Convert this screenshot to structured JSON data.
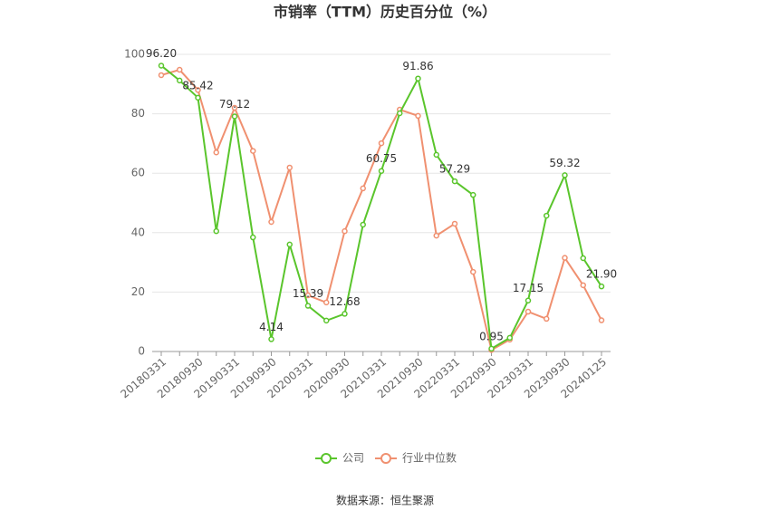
{
  "chart_data": {
    "type": "line",
    "title": "市销率（TTM）历史百分位（%）",
    "source": "数据来源：恒生聚源",
    "categories": [
      "20180331",
      null,
      "20180930",
      null,
      "20190331",
      null,
      "20190930",
      null,
      "20200331",
      null,
      "20200930",
      null,
      "20210331",
      null,
      "20210930",
      null,
      "20220331",
      null,
      "20220930",
      null,
      "20230331",
      null,
      "20230930",
      null,
      "20240125"
    ],
    "series": [
      {
        "name": "公司",
        "color": "#5ac52c",
        "values": [
          96.2,
          91.2,
          85.42,
          40.5,
          79.12,
          38.4,
          4.14,
          36,
          15.39,
          10.4,
          12.68,
          42.7,
          60.75,
          80.2,
          91.86,
          66.2,
          57.29,
          52.7,
          0.95,
          4.6,
          17.15,
          45.7,
          59.32,
          31.4,
          21.9
        ],
        "value_labels": [
          "96.20",
          null,
          "85.42",
          null,
          "79.12",
          null,
          "4.14",
          null,
          "15.39",
          null,
          "12.68",
          null,
          "60.75",
          null,
          "91.86",
          null,
          "57.29",
          null,
          "0.95",
          null,
          "17.15",
          null,
          "59.32",
          null,
          "21.90"
        ]
      },
      {
        "name": "行业中位数",
        "color": "#f09070",
        "values": [
          93,
          94.8,
          88,
          67,
          82,
          67.5,
          43.6,
          61.9,
          18.9,
          16.5,
          40.5,
          54.9,
          70.1,
          81.4,
          79.3,
          39,
          43,
          26.8,
          0.5,
          4,
          13.4,
          11,
          31.5,
          22.3,
          10.5
        ]
      }
    ],
    "ylim": [
      0,
      100
    ],
    "yticks": [
      0,
      20,
      40,
      60,
      80,
      100
    ],
    "grid": true,
    "legend": "bottom"
  }
}
